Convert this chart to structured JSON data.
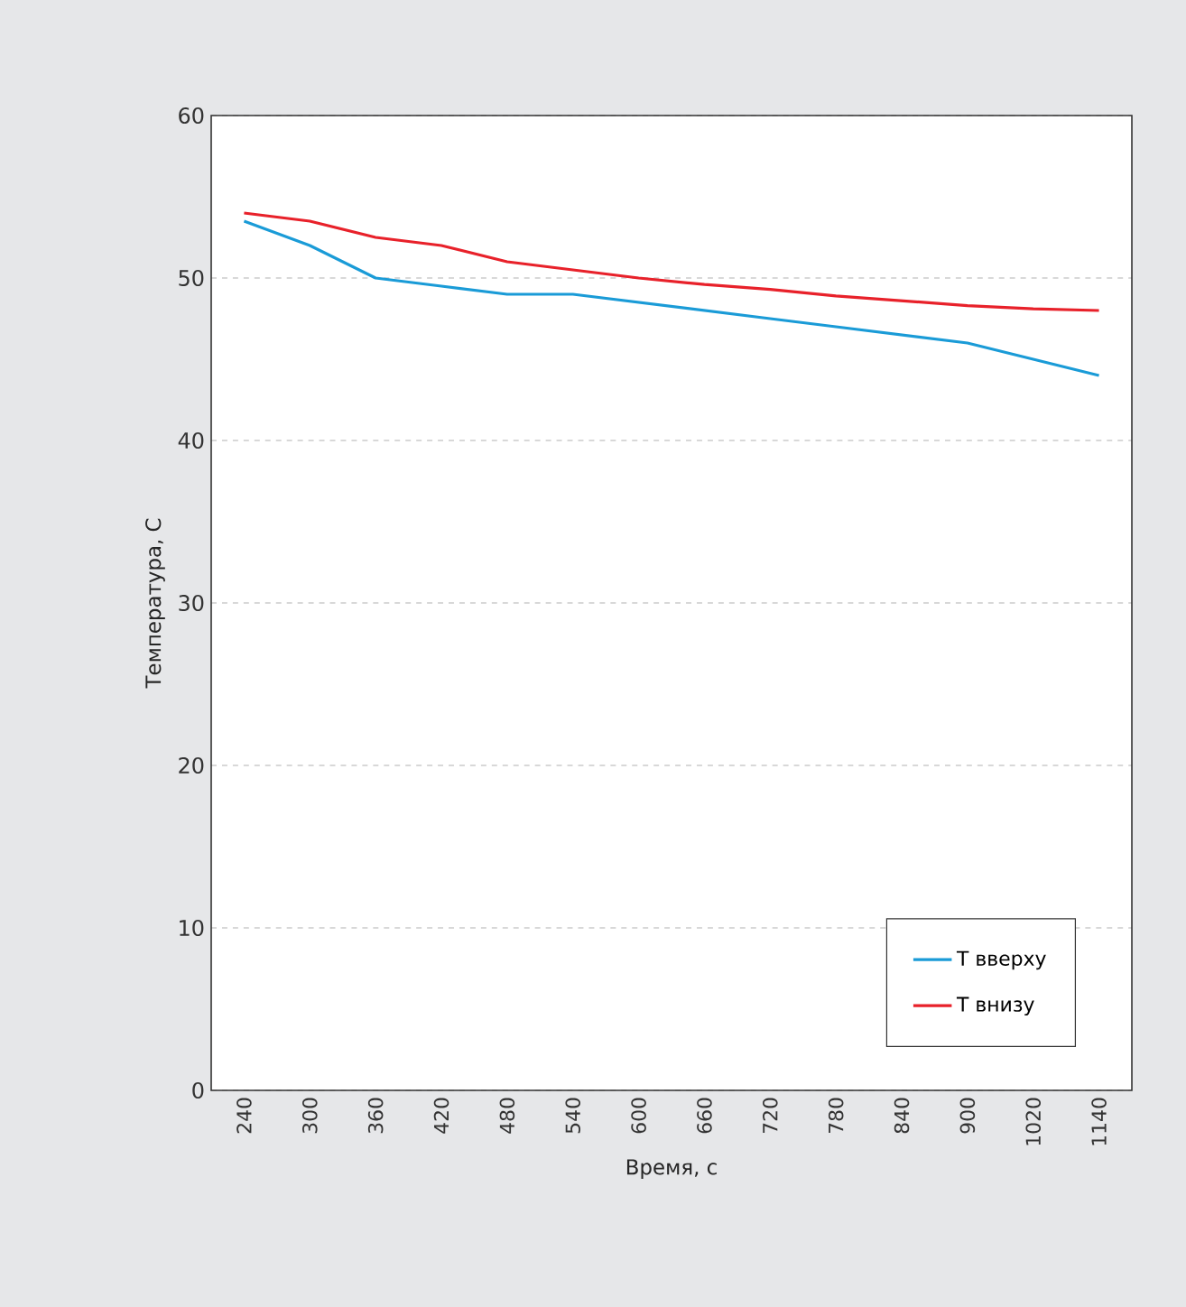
{
  "chart_data": {
    "type": "line",
    "xlabel": "Время, с",
    "ylabel": "Температура, С",
    "categories": [
      "240",
      "300",
      "360",
      "420",
      "480",
      "540",
      "600",
      "660",
      "720",
      "780",
      "840",
      "900",
      "1020",
      "1140"
    ],
    "series": [
      {
        "name": "T вверху",
        "color": "#1a9bd7",
        "values": [
          53.5,
          52,
          50,
          49.5,
          49,
          49,
          48.5,
          48,
          47.5,
          47,
          46.5,
          46,
          45,
          44
        ]
      },
      {
        "name": "T внизу",
        "color": "#e8212a",
        "values": [
          54,
          53.5,
          52.5,
          52,
          51,
          50.5,
          50,
          49.6,
          49.3,
          48.9,
          48.6,
          48.3,
          48.1,
          48
        ]
      }
    ],
    "ylim": [
      0,
      60
    ],
    "yticks": [
      0,
      10,
      20,
      30,
      40,
      50,
      60
    ],
    "grid": "y",
    "legend": "bottom right"
  }
}
